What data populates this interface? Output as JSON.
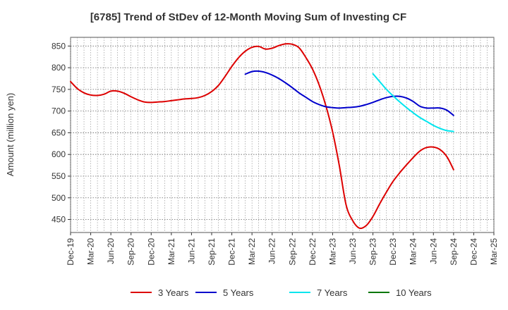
{
  "chart_data": {
    "type": "line",
    "title": "[6785]  Trend of StDev of 12-Month Moving Sum of Investing CF",
    "xlabel": "",
    "ylabel": "Amount (million yen)",
    "x_ticks": [
      "Dec-19",
      "Mar-20",
      "Jun-20",
      "Sep-20",
      "Dec-20",
      "Mar-21",
      "Jun-21",
      "Sep-21",
      "Dec-21",
      "Mar-22",
      "Jun-22",
      "Sep-22",
      "Dec-22",
      "Mar-23",
      "Jun-23",
      "Sep-23",
      "Dec-23",
      "Mar-24",
      "Jun-24",
      "Sep-24",
      "Dec-24",
      "Mar-25"
    ],
    "y_ticks": [
      450,
      500,
      550,
      600,
      650,
      700,
      750,
      800,
      850
    ],
    "ylim": [
      420,
      870
    ],
    "grid": true,
    "legend_position": "bottom",
    "series": [
      {
        "name": "3 Years",
        "color": "#dd0000",
        "values": [
          768,
          752,
          742,
          737,
          736,
          739,
          746,
          746,
          741,
          733,
          726,
          721,
          720,
          721,
          722,
          724,
          726,
          728,
          729,
          731,
          736,
          745,
          759,
          780,
          803,
          823,
          838,
          847,
          849,
          843,
          845,
          851,
          855,
          854,
          846,
          824,
          797,
          760,
          712,
          652,
          574,
          484,
          447,
          430,
          436,
          457,
          486,
          513,
          538,
          558,
          576,
          593,
          608,
          616,
          617,
          611,
          595,
          565
        ],
        "partial_x": [
          0,
          57
        ]
      },
      {
        "name": "5 Years",
        "color": "#0000cc",
        "values": [
          785,
          791,
          792,
          789,
          783,
          775,
          765,
          754,
          742,
          732,
          722,
          715,
          710,
          708,
          707,
          708,
          709,
          711,
          715,
          720,
          726,
          731,
          734,
          734,
          730,
          722,
          711,
          707,
          707,
          707,
          702,
          690
        ],
        "x_start_index": 26
      },
      {
        "name": "7 Years",
        "color": "#00e5ee",
        "values": [
          786,
          768,
          750,
          735,
          721,
          708,
          696,
          685,
          676,
          667,
          660,
          655,
          653
        ],
        "x_start_index": 45
      },
      {
        "name": "10 Years",
        "color": "#007700",
        "values": []
      }
    ]
  }
}
